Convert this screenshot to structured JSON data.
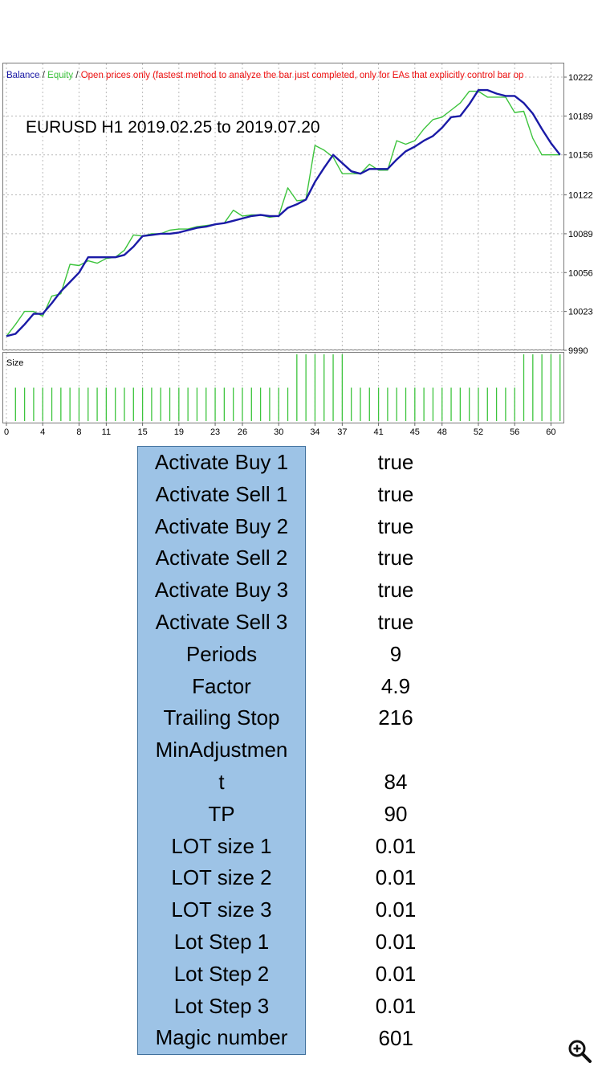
{
  "chart_data": {
    "type": "line",
    "legend": {
      "balance": "Balance",
      "sep1": " / ",
      "equity": "Equity",
      "sep2": " / ",
      "mode": "Open prices only (fastest method to analyze the bar just completed, only for EAs that explicitly control bar op"
    },
    "annotation": "EURUSD H1 2019.02.25  to  2019.07.20",
    "yticks": [
      10222,
      10189,
      10156,
      10122,
      10089,
      10056,
      10023,
      9990
    ],
    "ylim": [
      9990,
      10222
    ],
    "xticks": [
      0,
      4,
      8,
      11,
      15,
      19,
      23,
      26,
      30,
      34,
      37,
      41,
      45,
      48,
      52,
      56,
      60
    ],
    "xlim": [
      0,
      61.2
    ],
    "size_label": "Size",
    "size_bars": {
      "x": [
        1,
        2,
        3,
        4,
        5,
        6,
        7,
        8,
        9,
        10,
        11,
        12,
        13,
        14,
        15,
        16,
        17,
        18,
        19,
        20,
        21,
        22,
        23,
        24,
        25,
        26,
        27,
        28,
        29,
        30,
        31,
        32,
        33,
        34,
        35,
        36,
        37,
        38,
        39,
        40,
        41,
        42,
        43,
        44,
        45,
        46,
        47,
        48,
        49,
        50,
        51,
        52,
        53,
        54,
        55,
        56,
        57,
        58,
        59,
        60,
        61
      ],
      "values": [
        1,
        1,
        1,
        1,
        1,
        1,
        1,
        1,
        1,
        1,
        1,
        1,
        1,
        1,
        1,
        1,
        1,
        1,
        1,
        1,
        1,
        1,
        1,
        1,
        1,
        1,
        1,
        1,
        1,
        1,
        1,
        2,
        2,
        2,
        2,
        2,
        2,
        1,
        1,
        1,
        1,
        1,
        1,
        1,
        1,
        1,
        1,
        1,
        1,
        1,
        1,
        1,
        1,
        1,
        1,
        1,
        2,
        2,
        2,
        2,
        2
      ],
      "ylim": [
        0,
        2
      ]
    },
    "series": [
      {
        "name": "Balance",
        "color": "#1a1aa6",
        "x": [
          0,
          1,
          2,
          3,
          4,
          5,
          6,
          7,
          8,
          9,
          10,
          11,
          12,
          13,
          14,
          15,
          16,
          17,
          18,
          19,
          20,
          21,
          22,
          23,
          24,
          25,
          26,
          27,
          28,
          29,
          30,
          31,
          32,
          33,
          34,
          35,
          36,
          37,
          38,
          39,
          40,
          41,
          42,
          43,
          44,
          45,
          46,
          47,
          48,
          49,
          50,
          51,
          52,
          53,
          54,
          55,
          56,
          57,
          58,
          59,
          60,
          61
        ],
        "values": [
          10002,
          10004,
          10012,
          10021,
          10021,
          10030,
          10040,
          10048,
          10056,
          10069,
          10069,
          10069,
          10069,
          10071,
          10078,
          10087,
          10088,
          10089,
          10089,
          10090,
          10092,
          10094,
          10095,
          10097,
          10098,
          10100,
          10102,
          10104,
          10105,
          10104,
          10104,
          10111,
          10114,
          10118,
          10133,
          10145,
          10156,
          10149,
          10142,
          10140,
          10144,
          10144,
          10144,
          10152,
          10159,
          10163,
          10168,
          10172,
          10179,
          10188,
          10189,
          10199,
          10211,
          10211,
          10208,
          10206,
          10206,
          10200,
          10191,
          10178,
          10166,
          10156
        ]
      },
      {
        "name": "Equity",
        "color": "#3dc43d",
        "x": [
          0,
          1,
          2,
          3,
          4,
          5,
          6,
          7,
          8,
          9,
          10,
          11,
          12,
          13,
          14,
          15,
          16,
          17,
          18,
          19,
          20,
          21,
          22,
          23,
          24,
          25,
          26,
          27,
          28,
          29,
          30,
          31,
          32,
          33,
          34,
          35,
          36,
          37,
          38,
          39,
          40,
          41,
          42,
          43,
          44,
          45,
          46,
          47,
          48,
          49,
          50,
          51,
          52,
          53,
          54,
          55,
          56,
          57,
          58,
          59,
          60,
          61
        ],
        "values": [
          10002,
          10012,
          10023,
          10023,
          10019,
          10036,
          10038,
          10063,
          10062,
          10066,
          10064,
          10068,
          10069,
          10075,
          10088,
          10087,
          10089,
          10089,
          10092,
          10093,
          10093,
          10095,
          10096,
          10097,
          10098,
          10109,
          10104,
          10105,
          10105,
          10103,
          10104,
          10128,
          10117,
          10118,
          10164,
          10160,
          10154,
          10140,
          10140,
          10140,
          10148,
          10143,
          10143,
          10168,
          10165,
          10168,
          10178,
          10186,
          10188,
          10194,
          10200,
          10210,
          10210,
          10205,
          10205,
          10205,
          10192,
          10193,
          10170,
          10156,
          10156,
          10156
        ]
      }
    ]
  },
  "params": [
    {
      "name": "Activate Buy 1",
      "value": "true"
    },
    {
      "name": "Activate Sell 1",
      "value": "true"
    },
    {
      "name": "Activate Buy 2",
      "value": "true"
    },
    {
      "name": "Activate Sell 2",
      "value": "true"
    },
    {
      "name": "Activate Buy 3",
      "value": "true"
    },
    {
      "name": "Activate Sell 3",
      "value": "true"
    },
    {
      "name": "Periods",
      "value": "9"
    },
    {
      "name": "Factor",
      "value": "4.9"
    },
    {
      "name": "Trailing Stop",
      "value": "216"
    },
    {
      "name": "MinAdjustmen",
      "value": ""
    },
    {
      "name": "t",
      "value": "84"
    },
    {
      "name": "TP",
      "value": "90"
    },
    {
      "name": "LOT size 1",
      "value": "0.01"
    },
    {
      "name": "LOT size 2",
      "value": "0.01"
    },
    {
      "name": "LOT size 3",
      "value": "0.01"
    },
    {
      "name": "Lot Step 1",
      "value": "0.01"
    },
    {
      "name": "Lot Step 2",
      "value": "0.01"
    },
    {
      "name": "Lot Step 3",
      "value": "0.01"
    },
    {
      "name": "Magic number",
      "value": "601"
    }
  ],
  "zoom_icon": "zoom-in-icon"
}
